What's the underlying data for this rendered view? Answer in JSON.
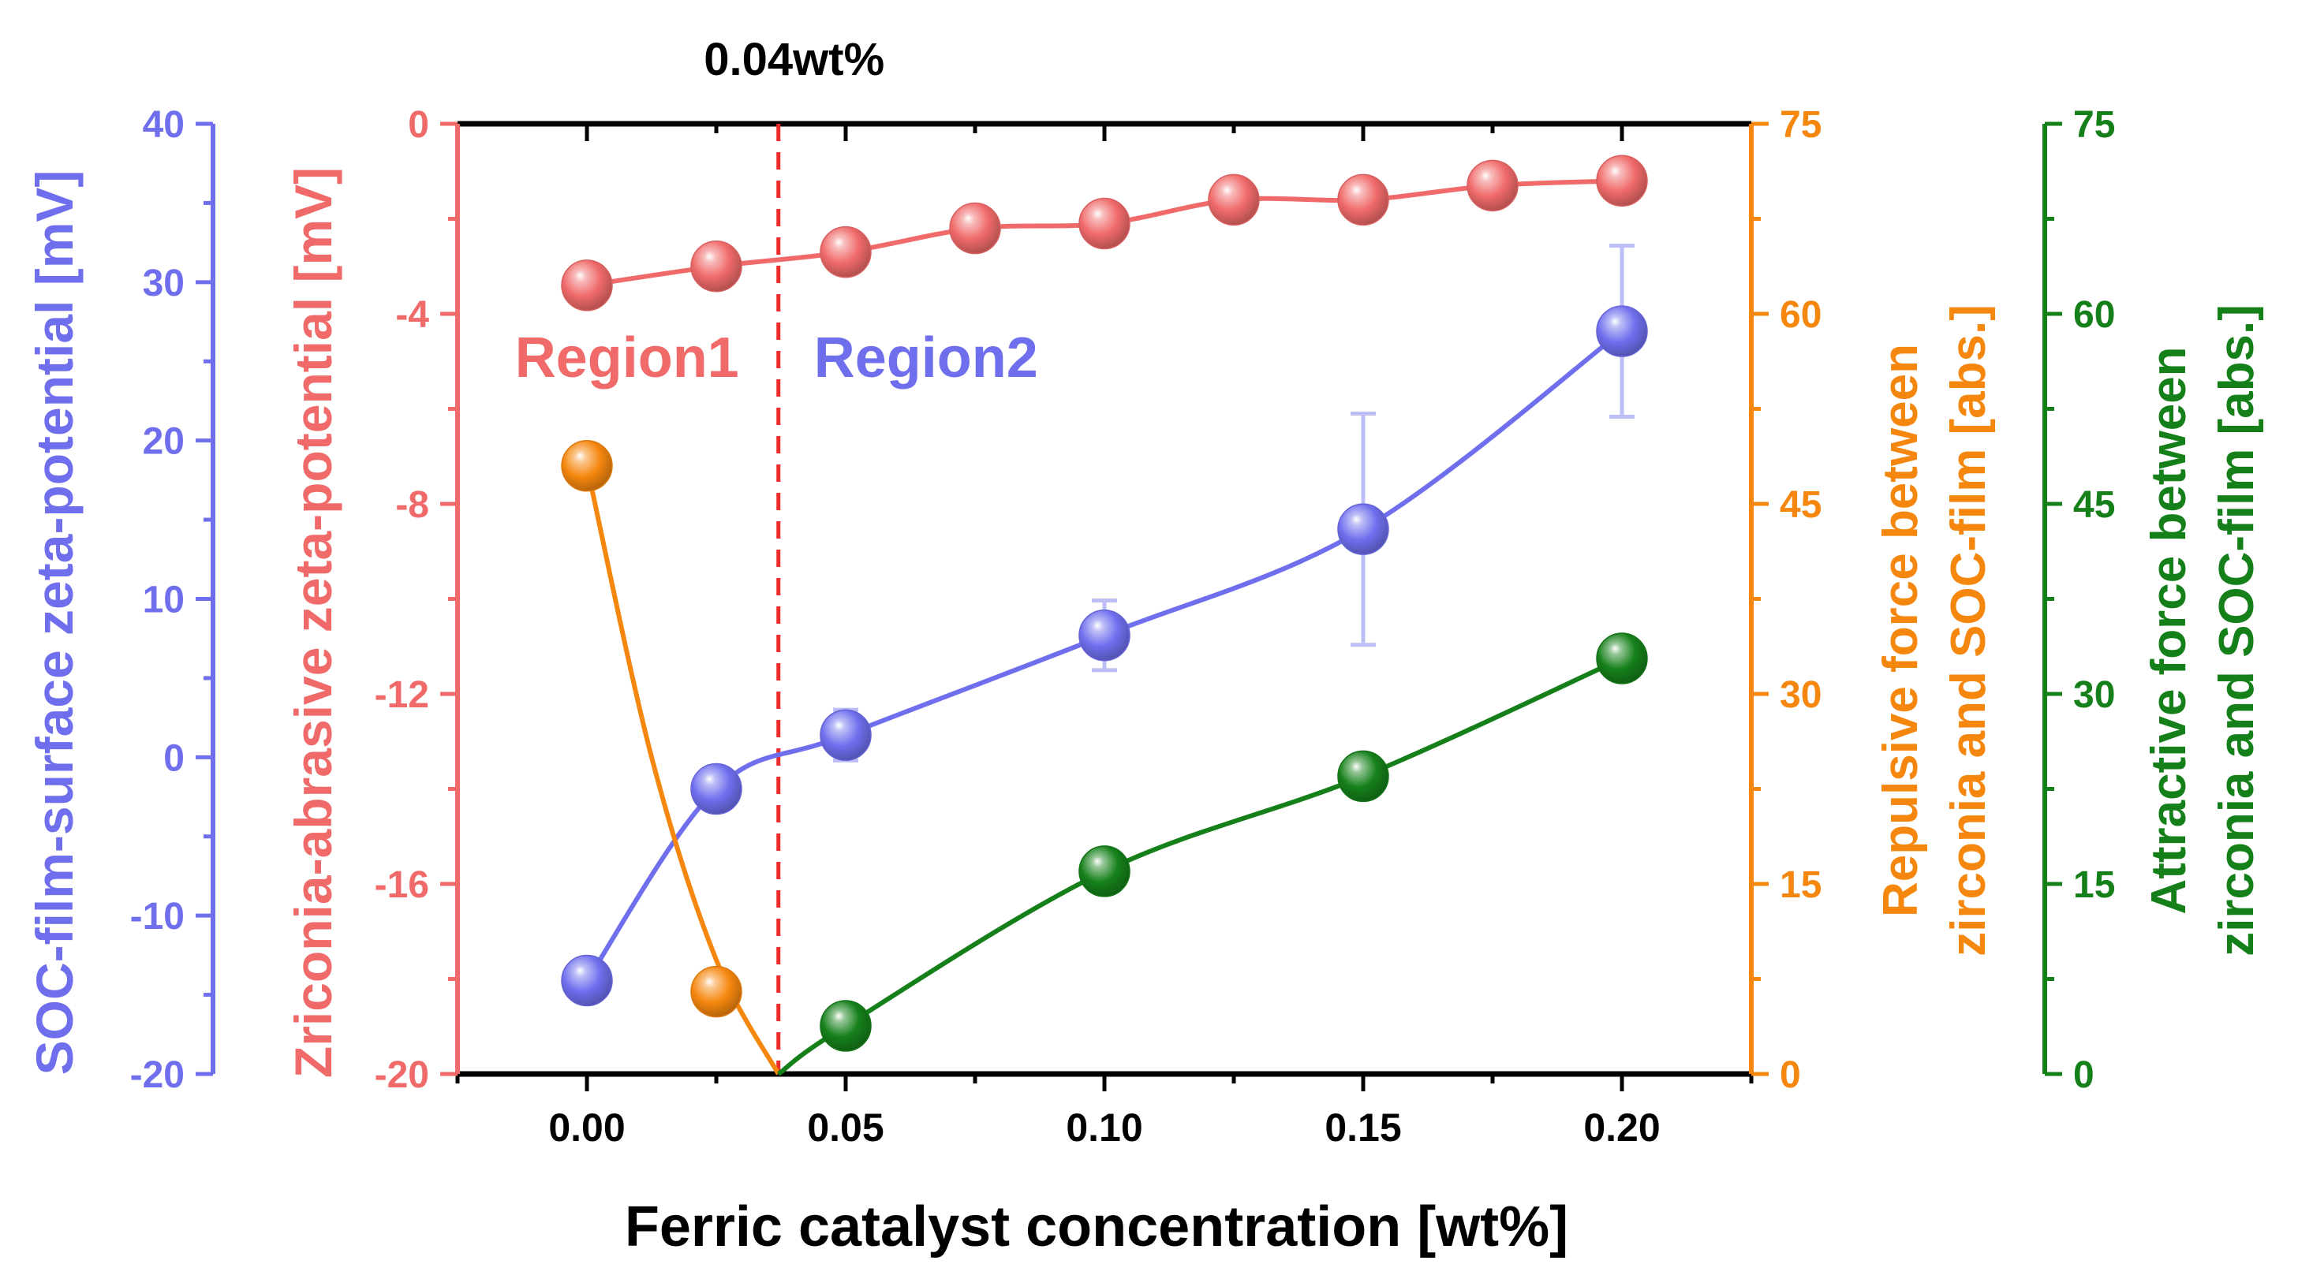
{
  "chart_data": {
    "type": "line",
    "xlabel": "Ferric catalyst concentration [wt%]",
    "xlim": [
      -0.025,
      0.225
    ],
    "x_ticks": [
      0.0,
      0.05,
      0.1,
      0.15,
      0.2
    ],
    "x_tick_labels": [
      "0.00",
      "0.05",
      "0.10",
      "0.15",
      "0.20"
    ],
    "x_minor_ticks": [
      -0.025,
      0.025,
      0.075,
      0.125,
      0.175,
      0.225
    ],
    "marker_line": {
      "x": 0.037,
      "label": "0.04wt%",
      "style": "dashed"
    },
    "annotations": [
      {
        "text": "Region1",
        "color": "#f06a6a"
      },
      {
        "text": "Region2",
        "color": "#6f6fee"
      }
    ],
    "axes": [
      {
        "id": "soc",
        "label": "SOC-film-surface zeta-potential [mV]",
        "side": "left-outer",
        "color": "#6f6fee",
        "ylim": [
          -20,
          40
        ],
        "ticks": [
          -20,
          -10,
          0,
          10,
          20,
          30,
          40
        ],
        "tick_labels": [
          "-20",
          "-10",
          "0",
          "10",
          "20",
          "30",
          "40"
        ]
      },
      {
        "id": "zr",
        "label": "Zriconia-abrasive zeta-potential [mV]",
        "side": "left-inner",
        "color": "#f06a6a",
        "ylim": [
          -20,
          0
        ],
        "ticks": [
          -20,
          -16,
          -12,
          -8,
          -4,
          0
        ],
        "tick_labels": [
          "-20",
          "-16",
          "-12",
          "-8",
          "-4",
          "0"
        ]
      },
      {
        "id": "rep",
        "label_lines": [
          "Repulsive force between",
          "zirconia and SOC-film [abs.]"
        ],
        "side": "right-inner",
        "color": "#f5870f",
        "ylim": [
          0,
          75
        ],
        "ticks": [
          0,
          15,
          30,
          45,
          60,
          75
        ],
        "tick_labels": [
          "0",
          "15",
          "30",
          "45",
          "60",
          "75"
        ]
      },
      {
        "id": "att",
        "label_lines": [
          "Attractive force between",
          "zirconia and SOC-film [abs.]"
        ],
        "side": "right-outer",
        "color": "#15801a",
        "ylim": [
          0,
          75
        ],
        "ticks": [
          0,
          15,
          30,
          45,
          60,
          75
        ],
        "tick_labels": [
          "0",
          "15",
          "30",
          "45",
          "60",
          "75"
        ]
      }
    ],
    "series": [
      {
        "name": "Zirconia-abrasive zeta-potential",
        "axis": "zr",
        "color": "#f06a6a",
        "x": [
          0.0,
          0.025,
          0.05,
          0.075,
          0.1,
          0.125,
          0.15,
          0.175,
          0.2
        ],
        "y": [
          -3.4,
          -3.0,
          -2.7,
          -2.2,
          -2.1,
          -1.6,
          -1.6,
          -1.3,
          -1.2
        ]
      },
      {
        "name": "SOC-film-surface zeta-potential",
        "axis": "soc",
        "color": "#6f6fee",
        "x": [
          0.0,
          0.025,
          0.05,
          0.1,
          0.15,
          0.2
        ],
        "y": [
          -14.1,
          -2.0,
          1.4,
          7.7,
          14.4,
          26.9
        ],
        "err": [
          1.3,
          1.3,
          1.6,
          2.2,
          7.3,
          5.4
        ]
      },
      {
        "name": "Repulsive force",
        "axis": "rep",
        "color": "#f5870f",
        "x": [
          0.0,
          0.025
        ],
        "y": [
          48.0,
          6.5
        ],
        "fit_x": [
          0.0,
          0.0125,
          0.025,
          0.037
        ],
        "fit_y": [
          48.0,
          25.0,
          9.0,
          0.0
        ]
      },
      {
        "name": "Attractive force",
        "axis": "att",
        "color": "#15801a",
        "x": [
          0.05,
          0.1,
          0.15,
          0.2
        ],
        "y": [
          3.8,
          16.0,
          23.5,
          32.8
        ],
        "fit_x": [
          0.037,
          0.05,
          0.1,
          0.15,
          0.2
        ],
        "fit_y": [
          0.0,
          3.8,
          16.0,
          23.5,
          32.8
        ]
      }
    ]
  }
}
